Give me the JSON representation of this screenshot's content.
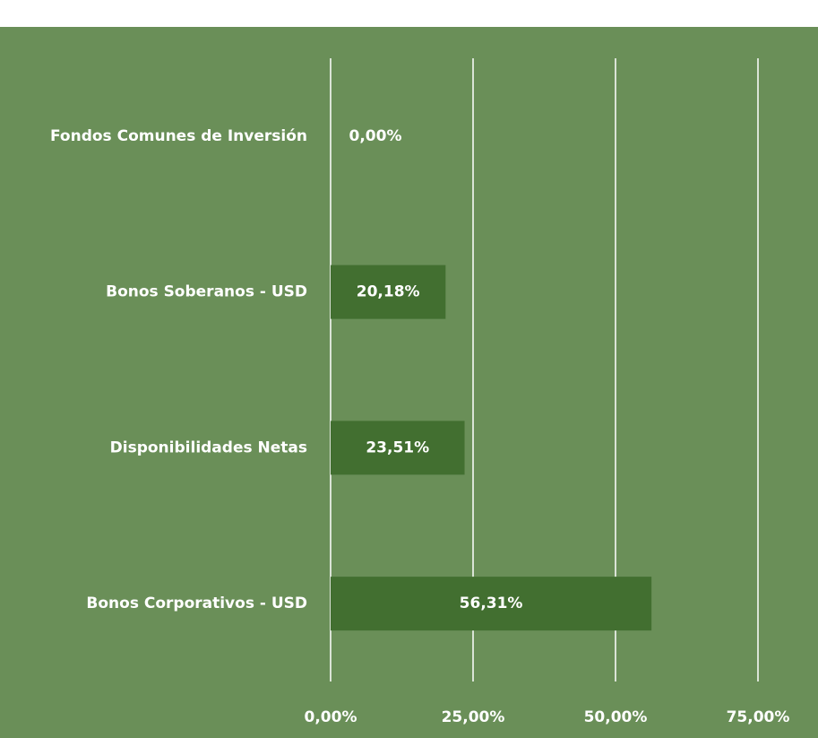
{
  "chart_data": {
    "type": "bar",
    "orientation": "horizontal",
    "categories": [
      "Fondos Comunes de Inversión",
      "Bonos Soberanos - USD",
      "Disponibilidades Netas",
      "Bonos Corporativos - USD"
    ],
    "values": [
      0.0,
      20.18,
      23.51,
      56.31
    ],
    "value_labels": [
      "0,00%",
      "20,18%",
      "23,51%",
      "56,31%"
    ],
    "color": "#426f30",
    "background": "#6a8f58",
    "xlim": [
      0,
      75
    ],
    "xticks": [
      {
        "value": 0,
        "label": "0,00%"
      },
      {
        "value": 25,
        "label": "25,00%"
      },
      {
        "value": 50,
        "label": "50,00%"
      },
      {
        "value": 75,
        "label": "75,00%"
      }
    ],
    "grid": true
  }
}
